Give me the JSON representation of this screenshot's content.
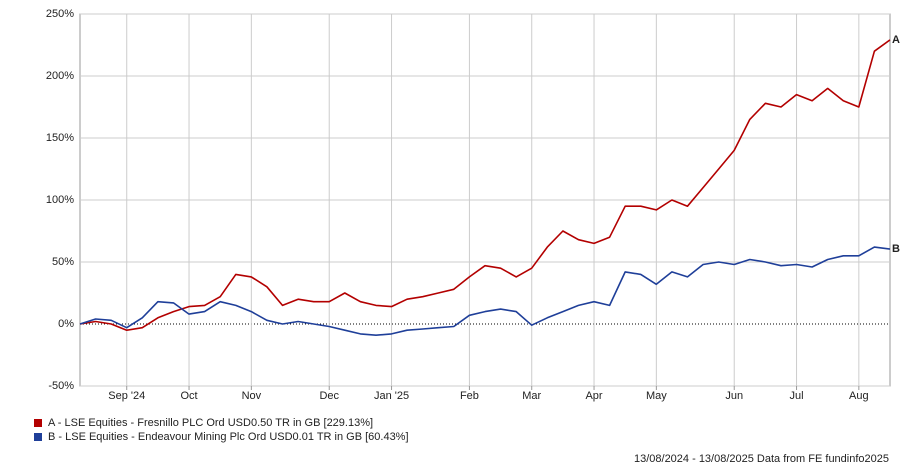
{
  "chart_data": {
    "type": "line",
    "categories": [
      null,
      null,
      null,
      "Sep '24",
      null,
      null,
      null,
      "Oct",
      null,
      null,
      null,
      "Nov",
      null,
      null,
      null,
      null,
      "Dec",
      null,
      null,
      null,
      "Jan '25",
      null,
      null,
      null,
      null,
      "Feb",
      null,
      null,
      null,
      "Mar",
      null,
      null,
      null,
      "Apr",
      null,
      null,
      null,
      "May",
      null,
      null,
      null,
      null,
      "Jun",
      null,
      null,
      null,
      "Jul",
      null,
      null,
      null,
      "Aug",
      null,
      null
    ],
    "series": [
      {
        "name": "A - LSE Equities - Fresnillo PLC Ord USD0.50 TR in GB [229.13%]",
        "end_label": "A",
        "color": "#b30000",
        "values": [
          0,
          2,
          0,
          -5,
          -3,
          5,
          10,
          14,
          15,
          22,
          40,
          38,
          30,
          15,
          20,
          18,
          18,
          25,
          18,
          15,
          14,
          20,
          22,
          25,
          28,
          38,
          47,
          45,
          38,
          45,
          62,
          75,
          68,
          65,
          70,
          95,
          95,
          92,
          100,
          95,
          110,
          125,
          140,
          165,
          178,
          175,
          185,
          180,
          190,
          180,
          175,
          220,
          229.13
        ]
      },
      {
        "name": "B - LSE Equities - Endeavour Mining Plc Ord USD0.01 TR in GB [60.43%]",
        "end_label": "B",
        "color": "#1f3f99",
        "values": [
          0,
          4,
          3,
          -3,
          5,
          18,
          17,
          8,
          10,
          18,
          15,
          10,
          3,
          0,
          2,
          0,
          -2,
          -5,
          -8,
          -9,
          -8,
          -5,
          -4,
          -3,
          -2,
          7,
          10,
          12,
          10,
          -1,
          5,
          10,
          15,
          18,
          15,
          42,
          40,
          32,
          42,
          38,
          48,
          50,
          48,
          52,
          50,
          47,
          48,
          46,
          52,
          55,
          55,
          62,
          60.43
        ]
      }
    ],
    "ylim": [
      -50,
      250
    ],
    "yticks": [
      {
        "value": -50,
        "label": "-50%"
      },
      {
        "value": 0,
        "label": "0%"
      },
      {
        "value": 50,
        "label": "50%"
      },
      {
        "value": 100,
        "label": "100%"
      },
      {
        "value": 150,
        "label": "150%"
      },
      {
        "value": 200,
        "label": "200%"
      },
      {
        "value": 250,
        "label": "250%"
      }
    ],
    "grid": true,
    "footer": "13/08/2024 - 13/08/2025 Data from FE fundinfo2025"
  }
}
